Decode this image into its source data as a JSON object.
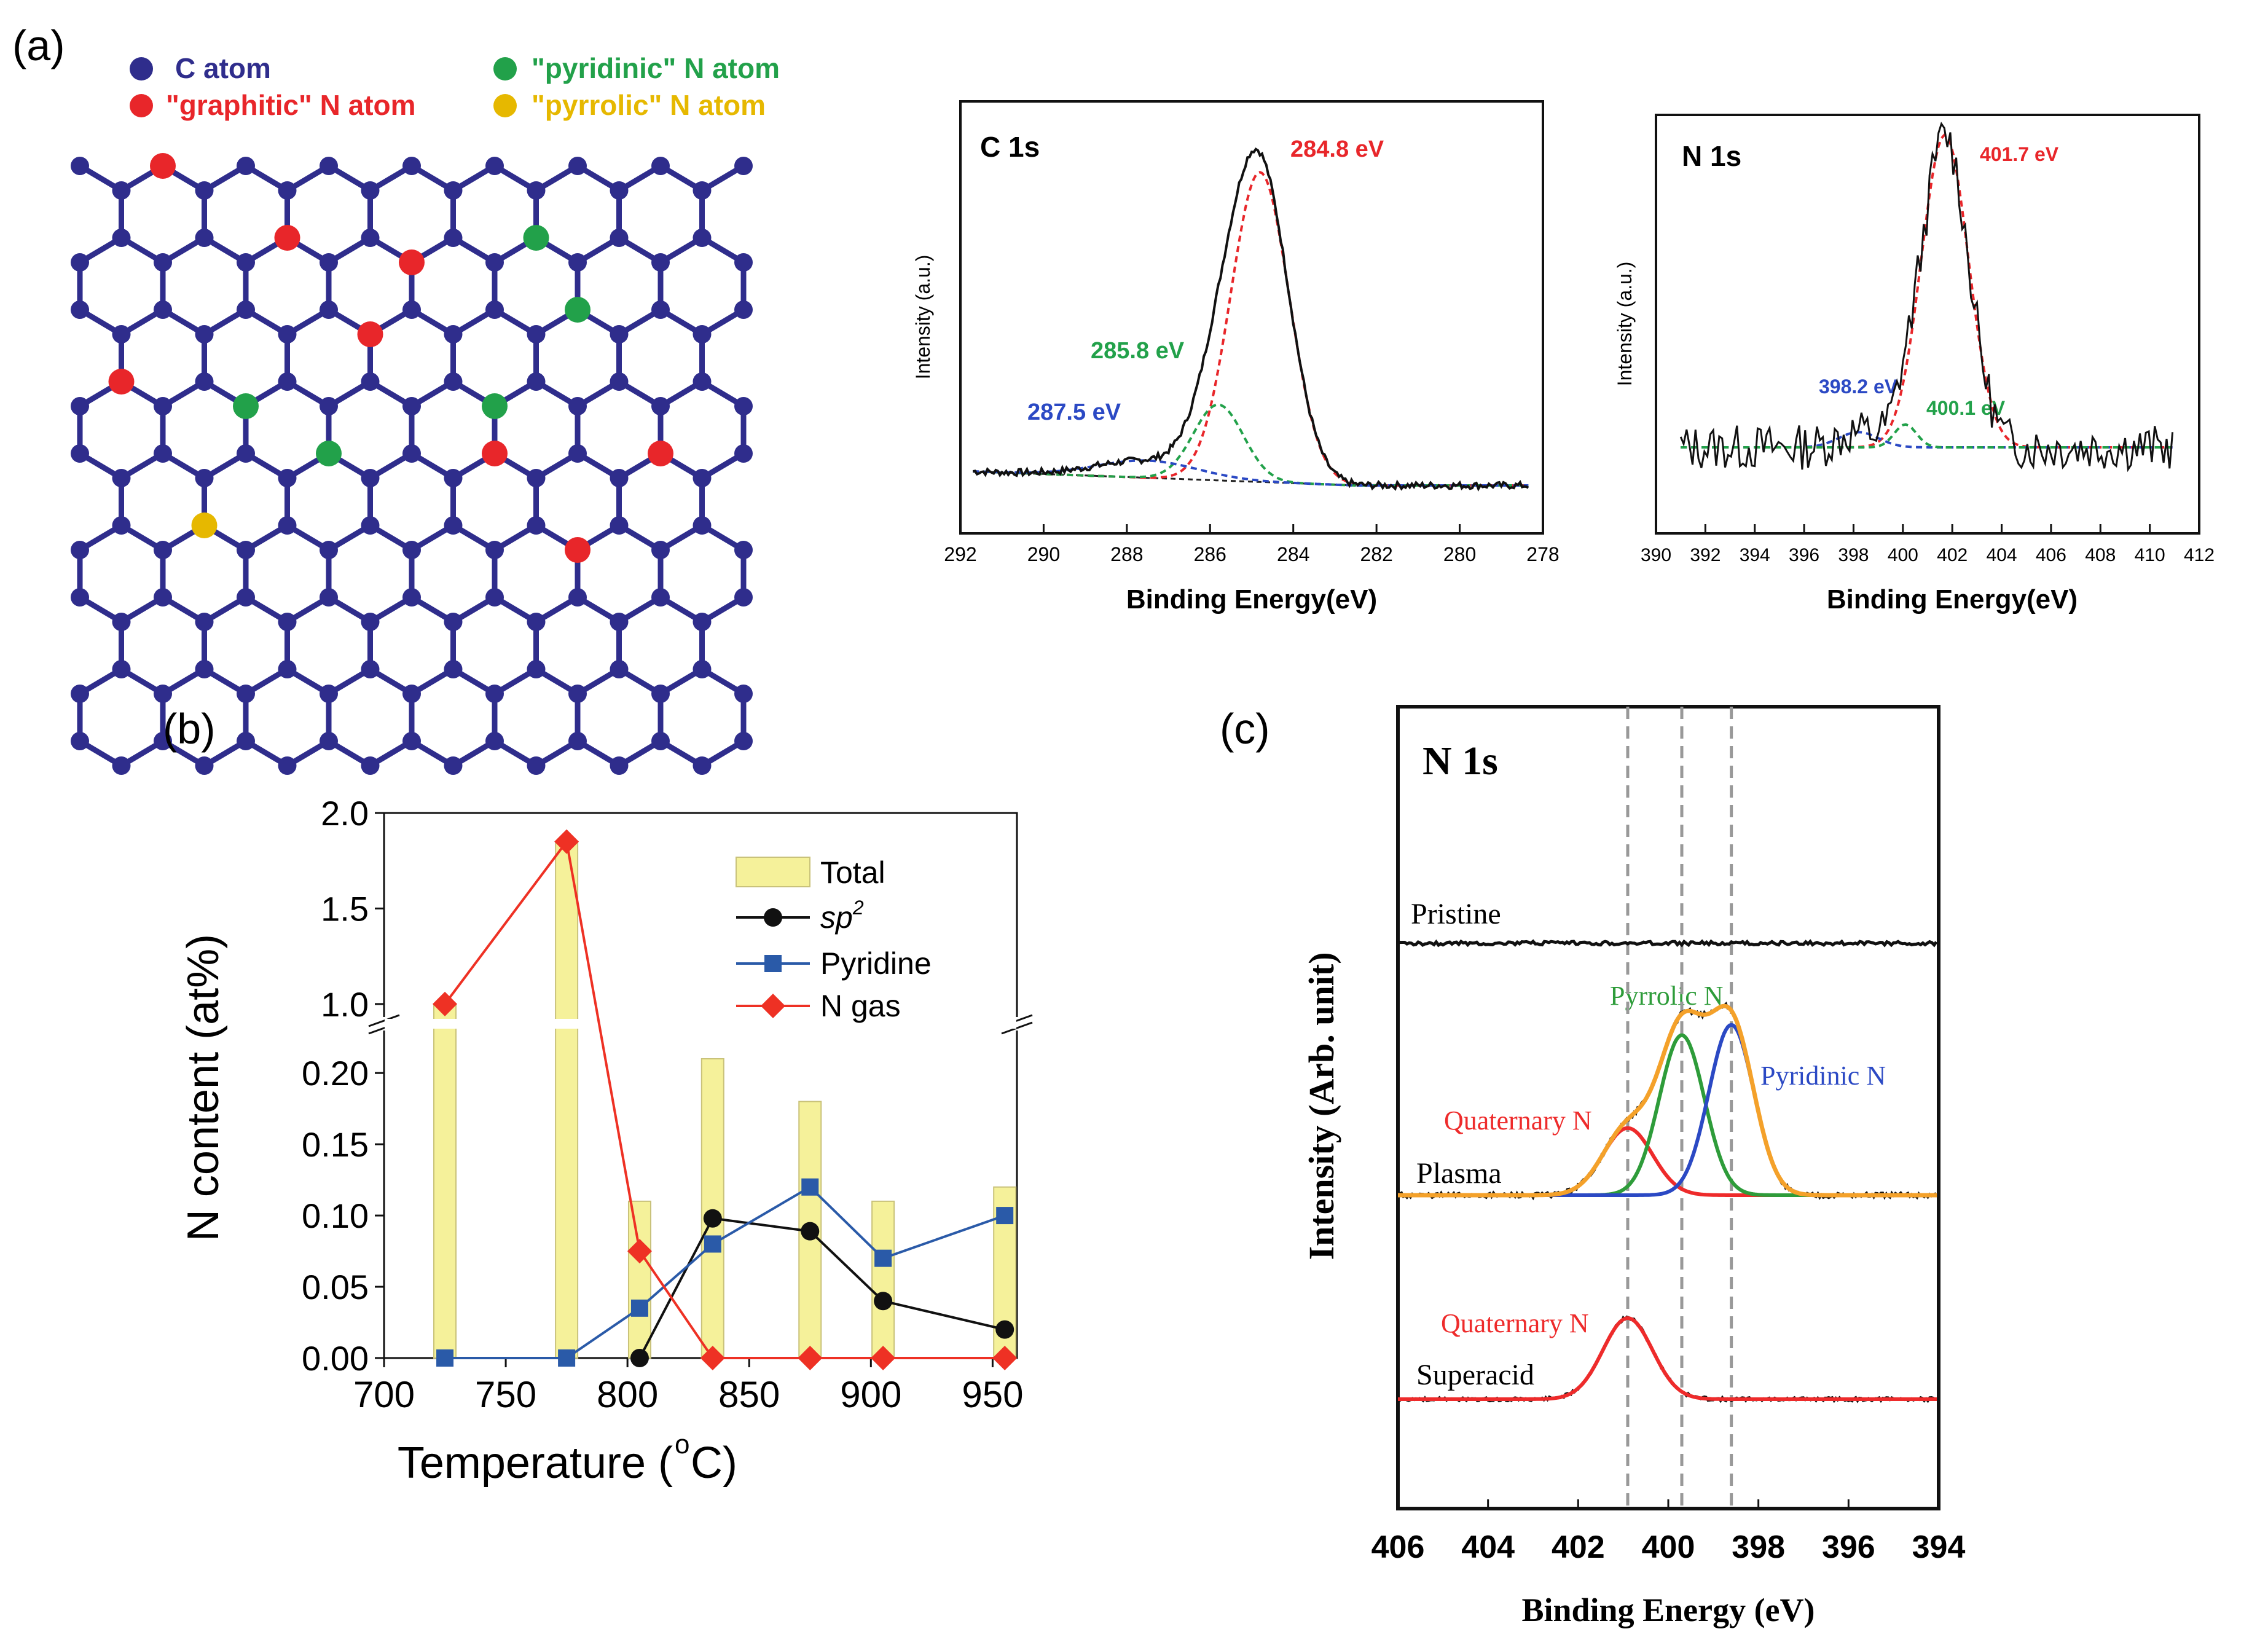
{
  "panel_labels": {
    "a": "(a)",
    "b": "(b)",
    "c": "(c)"
  },
  "colors": {
    "carbon": "#2f2d8c",
    "graphitic": "#e8262a",
    "pyridinic": "#22a14a",
    "pyrrolic": "#e6b800",
    "total_bar": "#f5f19a",
    "quaternary_line": "#ee2b2b",
    "pyrrolic_line": "#2e9c3a",
    "pyridinic_line": "#2b49c4",
    "envelope_line": "#f4a12a"
  },
  "legend_a": {
    "c_atom": "C atom",
    "pyridinic": "\"pyridinic\" N atom",
    "graphitic": "\"graphitic\" N atom",
    "pyrrolic": "\"pyrrolic\" N atom"
  },
  "chart_data": [
    {
      "id": "c1s",
      "type": "line",
      "title": "C 1s",
      "xlabel": "Binding Energy(eV)",
      "ylabel": "Intensity (a.u.)",
      "xlim": [
        292,
        278
      ],
      "xticks": [
        "292",
        "290",
        "288",
        "286",
        "284",
        "282",
        "280",
        "278"
      ],
      "annotations": [
        "284.8 eV",
        "285.8 eV",
        "287.5 eV"
      ],
      "peaks": [
        {
          "name": "284.8 eV",
          "center": 284.8,
          "height": 0.9,
          "width": 0.7,
          "color": "#e8262a"
        },
        {
          "name": "285.8 eV",
          "center": 285.8,
          "height": 0.22,
          "width": 0.6,
          "color": "#22a14a"
        },
        {
          "name": "287.5 eV",
          "center": 287.5,
          "height": 0.05,
          "width": 1.2,
          "color": "#2b49c4"
        }
      ]
    },
    {
      "id": "n1s_a",
      "type": "line",
      "title": "N 1s",
      "xlabel": "Binding Energy(eV)",
      "ylabel": "Intensity (a.u.)",
      "xlim": [
        390,
        412
      ],
      "xticks": [
        "390",
        "392",
        "394",
        "396",
        "398",
        "400",
        "402",
        "404",
        "406",
        "408",
        "410",
        "412"
      ],
      "annotations": [
        "401.7 eV",
        "398.2 eV",
        "400.1 eV"
      ],
      "peaks": [
        {
          "name": "401.7 eV",
          "center": 401.7,
          "height": 0.82,
          "width": 0.95,
          "color": "#e8262a"
        },
        {
          "name": "398.2 eV",
          "center": 398.2,
          "height": 0.04,
          "width": 0.8,
          "color": "#2b49c4"
        },
        {
          "name": "400.1 eV",
          "center": 400.1,
          "height": 0.06,
          "width": 0.45,
          "color": "#22a14a"
        }
      ]
    },
    {
      "id": "n_content",
      "type": "bar",
      "xlabel": "Temperature (oC)",
      "ylabel": "N content (at%)",
      "xlim": [
        700,
        960
      ],
      "xticks": [
        "700",
        "750",
        "800",
        "850",
        "900",
        "950"
      ],
      "yticks_low": [
        "0.00",
        "0.05",
        "0.10",
        "0.15",
        "0.20"
      ],
      "yticks_high": [
        "1.0",
        "1.5",
        "2.0"
      ],
      "axis_break": [
        0.23,
        0.9
      ],
      "categories": [
        725,
        775,
        805,
        835,
        875,
        905,
        955
      ],
      "series": [
        {
          "name": "Total",
          "kind": "bar",
          "values": [
            1.0,
            1.85,
            0.11,
            0.21,
            0.18,
            0.11,
            0.12
          ]
        },
        {
          "name": "sp",
          "superscript": "2",
          "kind": "line",
          "values": [
            null,
            null,
            0.0,
            0.098,
            0.089,
            0.04,
            0.02
          ]
        },
        {
          "name": "Pyridine",
          "kind": "line",
          "values": [
            0.0,
            0.0,
            0.035,
            0.08,
            0.12,
            0.07,
            0.1
          ]
        },
        {
          "name": "N gas",
          "kind": "line",
          "values": [
            1.0,
            1.85,
            0.075,
            0.0,
            0.0,
            0.0,
            0.0
          ]
        }
      ]
    },
    {
      "id": "n1s_c",
      "type": "line",
      "title": "N 1s",
      "xlabel": "Binding Energy (eV)",
      "ylabel": "Intensity (Arb. unit)",
      "xlim": [
        406,
        394
      ],
      "xticks": [
        "406",
        "404",
        "402",
        "400",
        "398",
        "396",
        "394"
      ],
      "guide_lines": [
        400.9,
        399.7,
        398.6
      ],
      "traces": [
        "Pristine",
        "Plasma",
        "Superacid"
      ],
      "components": [
        {
          "name": "Quaternary N",
          "center": 400.9,
          "height": 0.26,
          "width": 0.55
        },
        {
          "name": "Pyrrolic N",
          "center": 399.7,
          "height": 0.62,
          "width": 0.5
        },
        {
          "name": "Pyridinic N",
          "center": 398.6,
          "height": 0.66,
          "width": 0.5
        }
      ],
      "superacid_peak": {
        "name": "Quaternary N",
        "center": 400.9,
        "height": 0.55,
        "width": 0.55
      }
    }
  ]
}
